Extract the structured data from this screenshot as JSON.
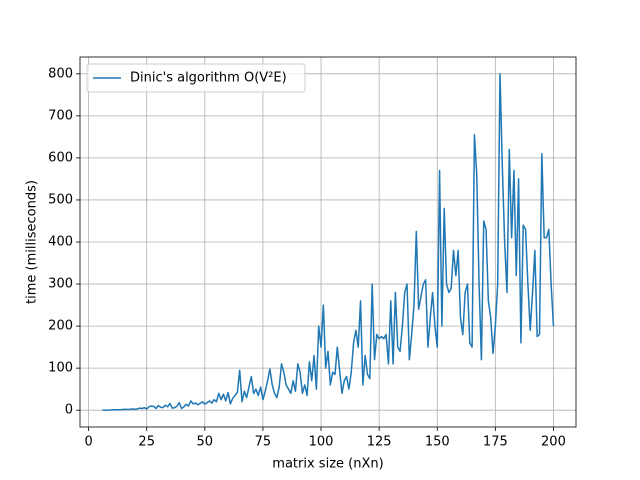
{
  "chart_data": {
    "type": "line",
    "x_label": "matrix size (nXn)",
    "y_label": "time (milliseconds)",
    "x": [
      6,
      7,
      8,
      9,
      10,
      11,
      12,
      13,
      14,
      15,
      16,
      17,
      18,
      19,
      20,
      21,
      22,
      23,
      24,
      25,
      26,
      27,
      28,
      29,
      30,
      31,
      32,
      33,
      34,
      35,
      36,
      37,
      38,
      39,
      40,
      41,
      42,
      43,
      44,
      45,
      46,
      47,
      48,
      49,
      50,
      51,
      52,
      53,
      54,
      55,
      56,
      57,
      58,
      59,
      60,
      61,
      62,
      63,
      64,
      65,
      66,
      67,
      68,
      69,
      70,
      71,
      72,
      73,
      74,
      75,
      76,
      77,
      78,
      79,
      80,
      81,
      82,
      83,
      84,
      85,
      86,
      87,
      88,
      89,
      90,
      91,
      92,
      93,
      94,
      95,
      96,
      97,
      98,
      99,
      100,
      101,
      102,
      103,
      104,
      105,
      106,
      107,
      108,
      109,
      110,
      111,
      112,
      113,
      114,
      115,
      116,
      117,
      118,
      119,
      120,
      121,
      122,
      123,
      124,
      125,
      126,
      127,
      128,
      129,
      130,
      131,
      132,
      133,
      134,
      135,
      136,
      137,
      138,
      139,
      140,
      141,
      142,
      143,
      144,
      145,
      146,
      147,
      148,
      149,
      150,
      151,
      152,
      153,
      154,
      155,
      156,
      157,
      158,
      159,
      160,
      161,
      162,
      163,
      164,
      165,
      166,
      167,
      168,
      169,
      170,
      171,
      172,
      173,
      174,
      175,
      176,
      177,
      178,
      179,
      180,
      181,
      182,
      183,
      184,
      185,
      186,
      187,
      188,
      189,
      190,
      191,
      192,
      193,
      194,
      195,
      196,
      197,
      198,
      199,
      200
    ],
    "series": [
      {
        "name": "Dinic's algorithm O(V²E)",
        "color": "#1f77b4",
        "values": [
          0,
          0,
          0,
          0,
          1,
          1,
          1,
          1,
          1,
          2,
          2,
          2,
          2,
          3,
          2,
          3,
          5,
          4,
          6,
          3,
          8,
          10,
          9,
          4,
          11,
          7,
          6,
          12,
          8,
          16,
          5,
          6,
          9,
          18,
          4,
          8,
          14,
          10,
          22,
          15,
          17,
          13,
          16,
          20,
          14,
          18,
          22,
          17,
          25,
          20,
          40,
          25,
          38,
          22,
          42,
          15,
          28,
          35,
          42,
          95,
          20,
          45,
          30,
          55,
          80,
          40,
          50,
          35,
          55,
          25,
          45,
          70,
          98,
          60,
          40,
          30,
          55,
          110,
          90,
          60,
          50,
          40,
          70,
          45,
          110,
          90,
          40,
          60,
          35,
          115,
          70,
          130,
          50,
          200,
          150,
          250,
          100,
          140,
          60,
          90,
          85,
          150,
          95,
          40,
          70,
          80,
          50,
          90,
          160,
          190,
          150,
          260,
          60,
          130,
          85,
          75,
          300,
          120,
          180,
          170,
          175,
          170,
          180,
          110,
          260,
          110,
          280,
          150,
          140,
          200,
          280,
          300,
          120,
          180,
          250,
          425,
          240,
          270,
          300,
          310,
          150,
          220,
          280,
          200,
          150,
          570,
          200,
          480,
          300,
          280,
          290,
          380,
          320,
          380,
          220,
          180,
          280,
          300,
          160,
          150,
          655,
          560,
          300,
          120,
          450,
          430,
          260,
          220,
          135,
          200,
          300,
          800,
          580,
          400,
          280,
          620,
          410,
          570,
          320,
          550,
          160,
          440,
          430,
          300,
          190,
          280,
          380,
          175,
          180,
          610,
          410,
          410,
          430,
          300,
          200
        ]
      }
    ],
    "xlim": [
      -3.7,
      209.7
    ],
    "ylim": [
      -40,
      840
    ],
    "xticks": [
      0,
      25,
      50,
      75,
      100,
      125,
      150,
      175,
      200
    ],
    "yticks": [
      0,
      100,
      200,
      300,
      400,
      500,
      600,
      700,
      800
    ],
    "grid": true,
    "legend": "upper left"
  }
}
